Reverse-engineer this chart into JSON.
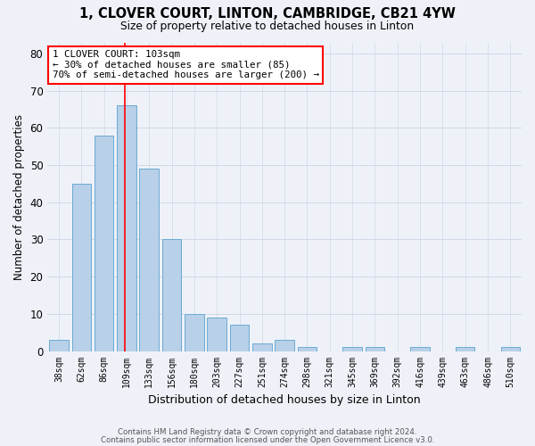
{
  "title": "1, CLOVER COURT, LINTON, CAMBRIDGE, CB21 4YW",
  "subtitle": "Size of property relative to detached houses in Linton",
  "xlabel": "Distribution of detached houses by size in Linton",
  "ylabel": "Number of detached properties",
  "bar_labels": [
    "38sqm",
    "62sqm",
    "86sqm",
    "109sqm",
    "133sqm",
    "156sqm",
    "180sqm",
    "203sqm",
    "227sqm",
    "251sqm",
    "274sqm",
    "298sqm",
    "321sqm",
    "345sqm",
    "369sqm",
    "392sqm",
    "416sqm",
    "439sqm",
    "463sqm",
    "486sqm",
    "510sqm"
  ],
  "bar_values": [
    3,
    45,
    58,
    66,
    49,
    30,
    10,
    9,
    7,
    2,
    3,
    1,
    0,
    1,
    1,
    0,
    1,
    0,
    1,
    0,
    1
  ],
  "bar_color": "#b8d0e8",
  "bar_edge_color": "#6aaad4",
  "ylim": [
    0,
    83
  ],
  "yticks": [
    0,
    10,
    20,
    30,
    40,
    50,
    60,
    70,
    80
  ],
  "property_line_x": 2.925,
  "annotation_line1": "1 CLOVER COURT: 103sqm",
  "annotation_line2": "← 30% of detached houses are smaller (85)",
  "annotation_line3": "70% of semi-detached houses are larger (200) →",
  "footer_line1": "Contains HM Land Registry data © Crown copyright and database right 2024.",
  "footer_line2": "Contains public sector information licensed under the Open Government Licence v3.0.",
  "background_color": "#eef2f8",
  "plot_background_color": "#eef2f8",
  "grid_color": "#d0d8e8"
}
